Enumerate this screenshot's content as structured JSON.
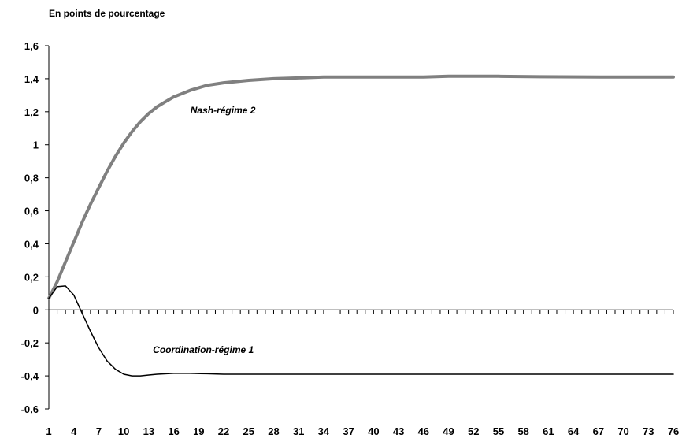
{
  "unit_label": "En points de pourcentage",
  "chart_data": {
    "type": "line",
    "title": "",
    "ylabel": "En points de pourcentage",
    "xlabel": "",
    "x_ticks": [
      1,
      4,
      7,
      10,
      13,
      16,
      19,
      22,
      25,
      28,
      31,
      34,
      37,
      40,
      43,
      46,
      49,
      52,
      55,
      58,
      61,
      64,
      67,
      70,
      73,
      76
    ],
    "xlim": [
      1,
      76
    ],
    "ylim": [
      -0.6,
      1.6
    ],
    "y_ticks": [
      -0.6,
      -0.4,
      -0.2,
      0,
      0.2,
      0.4,
      0.6,
      0.8,
      1,
      1.2,
      1.4,
      1.6
    ],
    "y_tick_labels": [
      "-0,6",
      "-0,4",
      "-0,2",
      "0",
      "0,2",
      "0,4",
      "0,6",
      "0,8",
      "1",
      "1,2",
      "1,4",
      "1,6"
    ],
    "grid": false,
    "series": [
      {
        "name": "Nash-régime 2",
        "color": "#808080",
        "points": [
          [
            1,
            0.07
          ],
          [
            2,
            0.17
          ],
          [
            3,
            0.29
          ],
          [
            4,
            0.41
          ],
          [
            5,
            0.53
          ],
          [
            6,
            0.64
          ],
          [
            7,
            0.74
          ],
          [
            8,
            0.84
          ],
          [
            9,
            0.93
          ],
          [
            10,
            1.01
          ],
          [
            11,
            1.08
          ],
          [
            12,
            1.14
          ],
          [
            13,
            1.19
          ],
          [
            14,
            1.23
          ],
          [
            15,
            1.26
          ],
          [
            16,
            1.29
          ],
          [
            17,
            1.31
          ],
          [
            18,
            1.33
          ],
          [
            19,
            1.345
          ],
          [
            20,
            1.36
          ],
          [
            22,
            1.375
          ],
          [
            25,
            1.39
          ],
          [
            28,
            1.4
          ],
          [
            31,
            1.405
          ],
          [
            34,
            1.41
          ],
          [
            40,
            1.41
          ],
          [
            46,
            1.41
          ],
          [
            49,
            1.415
          ],
          [
            55,
            1.415
          ],
          [
            60,
            1.412
          ],
          [
            70,
            1.41
          ],
          [
            76,
            1.41
          ]
        ]
      },
      {
        "name": "Coordination-régime 1",
        "color": "#000000",
        "points": [
          [
            1,
            0.07
          ],
          [
            2,
            0.14
          ],
          [
            3,
            0.145
          ],
          [
            4,
            0.09
          ],
          [
            5,
            -0.02
          ],
          [
            6,
            -0.13
          ],
          [
            7,
            -0.23
          ],
          [
            8,
            -0.31
          ],
          [
            9,
            -0.36
          ],
          [
            10,
            -0.39
          ],
          [
            11,
            -0.4
          ],
          [
            12,
            -0.4
          ],
          [
            13,
            -0.395
          ],
          [
            14,
            -0.39
          ],
          [
            16,
            -0.385
          ],
          [
            18,
            -0.385
          ],
          [
            20,
            -0.387
          ],
          [
            22,
            -0.39
          ],
          [
            25,
            -0.39
          ],
          [
            35,
            -0.39
          ],
          [
            50,
            -0.39
          ],
          [
            76,
            -0.39
          ]
        ]
      }
    ]
  }
}
